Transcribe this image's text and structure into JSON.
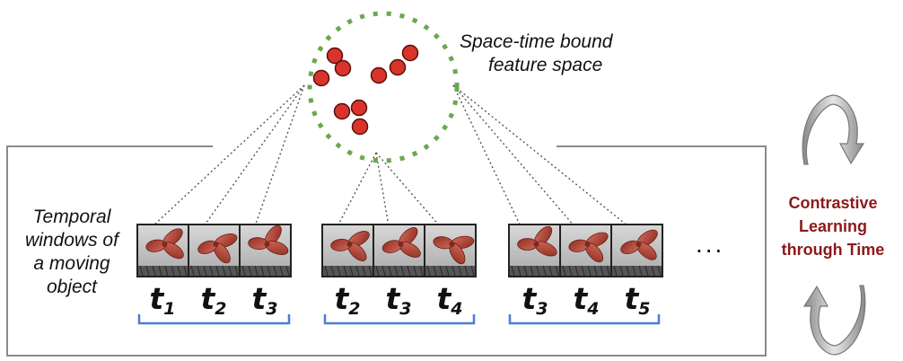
{
  "feature_space_label": [
    "Space-time bound",
    "feature space"
  ],
  "temporal_label": [
    "Temporal",
    "windows of",
    "a moving",
    "object"
  ],
  "contrastive_label": [
    "Contrastive",
    "Learning",
    "through Time"
  ],
  "ellipsis": "...",
  "windows": [
    {
      "steps": [
        "1",
        "2",
        "3"
      ]
    },
    {
      "steps": [
        "2",
        "3",
        "4"
      ]
    },
    {
      "steps": [
        "3",
        "4",
        "5"
      ]
    }
  ],
  "colors": {
    "dot_border": "#6aa84f",
    "point": "#d9342b",
    "bracket": "#4a7fd4",
    "arrow": "#9a9a9a",
    "accent_text": "#8b1a1a"
  },
  "icons": [
    "frame-object-thumbnail",
    "cycle-arrow-icon"
  ]
}
